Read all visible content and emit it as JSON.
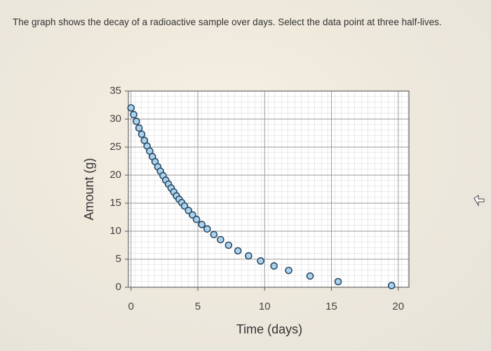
{
  "question": "The graph shows the decay of a radioactive sample over days. Select the data point at three half-lives.",
  "chart_data": {
    "type": "scatter",
    "x_label": "Time (days)",
    "y_label": "Amount (g)",
    "x": [
      0,
      0.2,
      0.4,
      0.6,
      0.8,
      1.0,
      1.2,
      1.4,
      1.6,
      1.8,
      2.0,
      2.2,
      2.4,
      2.6,
      2.8,
      3.0,
      3.2,
      3.4,
      3.6,
      3.8,
      4.0,
      4.3,
      4.6,
      4.9,
      5.3,
      5.7,
      6.2,
      6.7,
      7.3,
      8.0,
      8.8,
      9.7,
      10.7,
      11.8,
      13.4,
      15.5,
      19.5
    ],
    "values": [
      32.0,
      30.8,
      29.6,
      28.4,
      27.3,
      26.2,
      25.2,
      24.3,
      23.3,
      22.4,
      21.5,
      20.7,
      19.9,
      19.1,
      18.4,
      17.7,
      17.0,
      16.3,
      15.7,
      15.1,
      14.5,
      13.7,
      12.9,
      12.1,
      11.2,
      10.4,
      9.4,
      8.5,
      7.5,
      6.5,
      5.6,
      4.7,
      3.8,
      3.0,
      2.0,
      1.0,
      0.3
    ],
    "color": "#a9d3ee",
    "xlim": [
      -0.2,
      20.8
    ],
    "ylim": [
      0,
      35
    ],
    "xticks": [
      0,
      5,
      10,
      15,
      20
    ],
    "yticks": [
      0,
      5,
      10,
      15,
      20,
      25,
      30,
      35
    ],
    "grid": true
  }
}
